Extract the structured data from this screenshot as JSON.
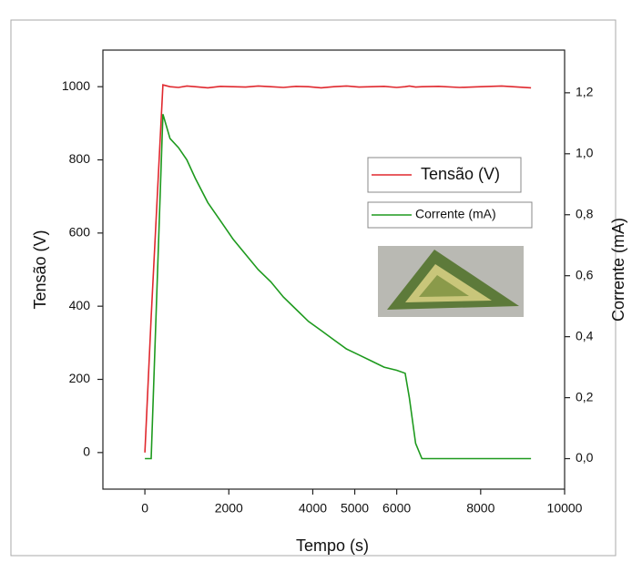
{
  "chart_data": {
    "type": "line",
    "xlabel": "Tempo (s)",
    "ylabel": "Tensão (V)",
    "y2label": "Corrente (mA)",
    "x": [
      0,
      150,
      430,
      600,
      800,
      1000,
      1200,
      1500,
      1800,
      2100,
      2400,
      2700,
      3000,
      3300,
      3600,
      3900,
      4200,
      4500,
      4800,
      5100,
      5400,
      5700,
      6000,
      6200,
      6300,
      6450,
      6600,
      7000,
      7500,
      8000,
      8500,
      9200
    ],
    "series": [
      {
        "name": "Tensão (V)",
        "color": "#e0282e",
        "values": [
          0,
          370,
          1005,
          1000,
          998,
          1002,
          1000,
          997,
          1001,
          1000,
          999,
          1002,
          1000,
          998,
          1001,
          1000,
          997,
          1000,
          1002,
          999,
          1000,
          1001,
          998,
          1000,
          1002,
          999,
          1000,
          1001,
          998,
          1000,
          1002,
          997
        ]
      },
      {
        "name": "Corrente (mA)",
        "color": "#1e9a1e",
        "axis": "y2",
        "values": [
          0,
          0,
          1.13,
          1.05,
          1.02,
          0.98,
          0.92,
          0.84,
          0.78,
          0.72,
          0.67,
          0.62,
          0.58,
          0.53,
          0.49,
          0.45,
          0.42,
          0.39,
          0.36,
          0.34,
          0.32,
          0.3,
          0.29,
          0.28,
          0.2,
          0.05,
          0,
          0,
          0,
          0,
          0,
          0
        ]
      }
    ],
    "xlim": [
      -1000,
      10000
    ],
    "xticks": [
      0,
      2000,
      4000,
      5000,
      6000,
      8000,
      10000
    ],
    "ylim": [
      -100,
      1100
    ],
    "yticks": [
      0,
      200,
      400,
      600,
      800,
      1000
    ],
    "y2lim": [
      -0.1,
      1.34
    ],
    "y2ticks": [
      {
        "value": 0,
        "label": "0,0"
      },
      {
        "value": 0.2,
        "label": "0,2"
      },
      {
        "value": 0.4,
        "label": "0,4"
      },
      {
        "value": 0.6,
        "label": "0,6"
      },
      {
        "value": 0.8,
        "label": "0,8"
      },
      {
        "value": 1.0,
        "label": "1,0"
      },
      {
        "value": 1.2,
        "label": "1,2"
      }
    ],
    "grid": false
  }
}
